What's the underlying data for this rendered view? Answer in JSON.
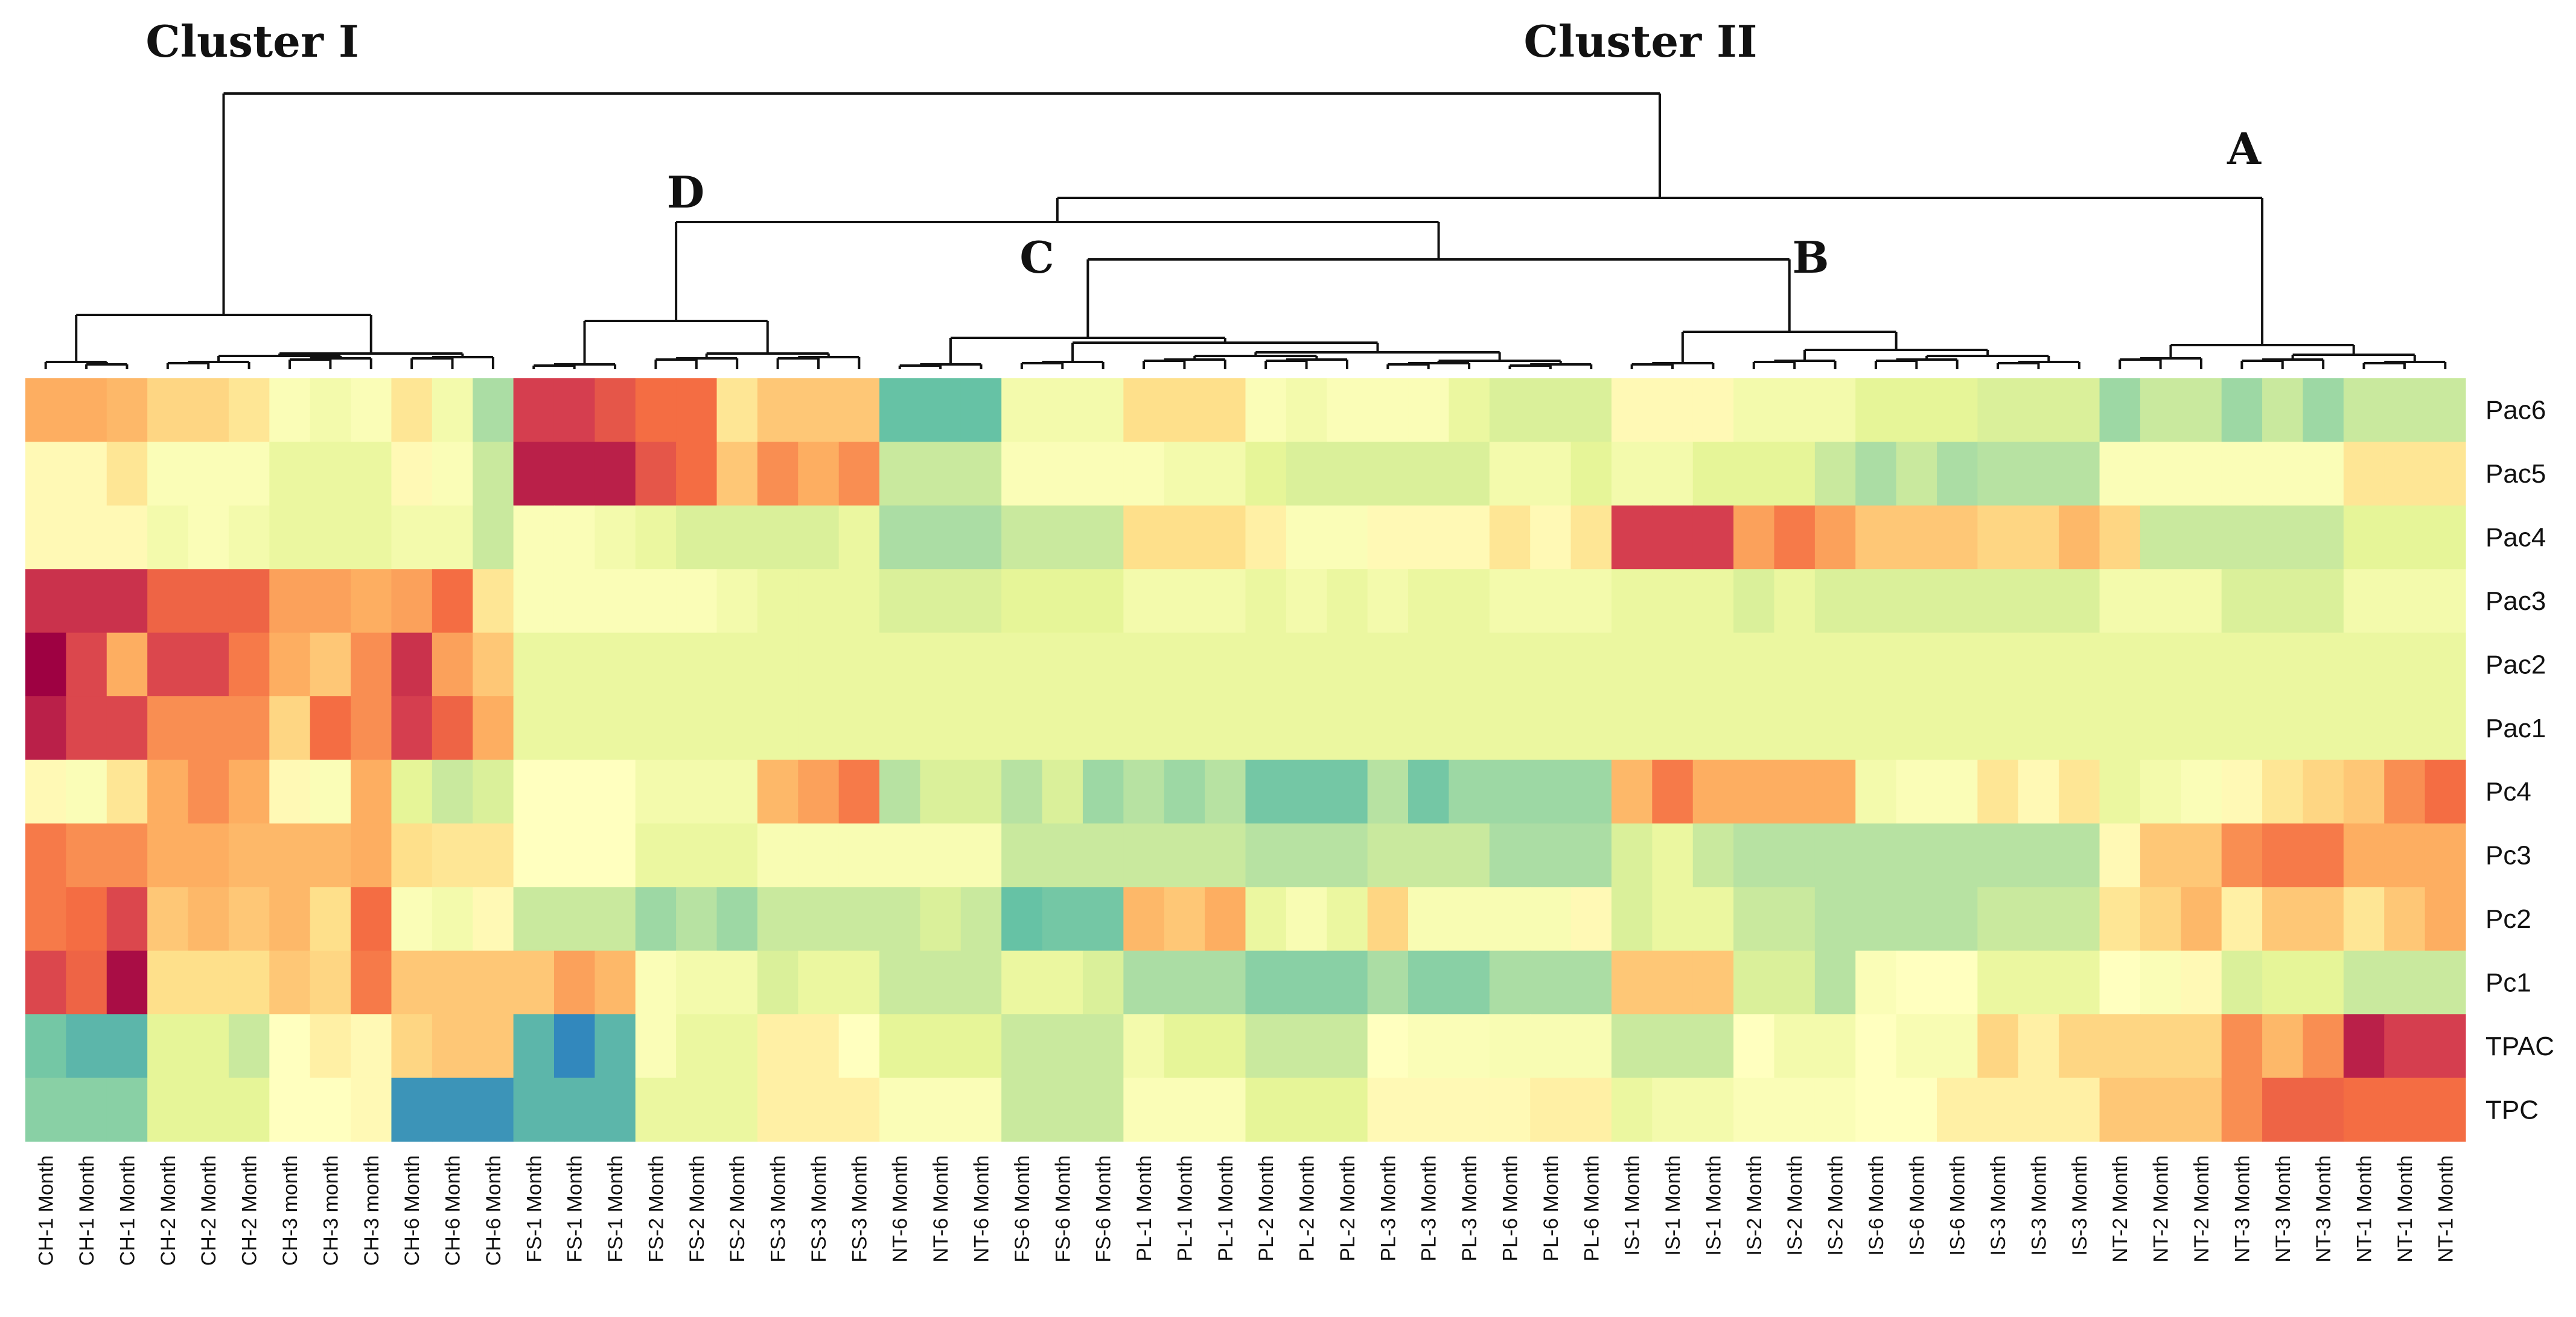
{
  "chart_data": {
    "type": "heatmap",
    "title": "",
    "colormap": [
      "#9e0142",
      "#d53e4f",
      "#f46d43",
      "#fdae61",
      "#fee08b",
      "#ffffbf",
      "#e6f598",
      "#abdda4",
      "#66c2a5",
      "#3288bd"
    ],
    "cluster_labels": {
      "cluster_1": "Cluster I",
      "cluster_2": "Cluster II",
      "a": "A",
      "b": "B",
      "c": "C",
      "d": "D"
    },
    "rows": [
      "Pac6",
      "Pac5",
      "Pac4",
      "Pac3",
      "Pac2",
      "Pac1",
      "Pc4",
      "Pc3",
      "Pc2",
      "Pc1",
      "TPAC",
      "TPC"
    ],
    "columns": [
      "CH-1 Month",
      "CH-1 Month",
      "CH-1 Month",
      "CH-2 Month",
      "CH-2 Month",
      "CH-2 Month",
      "CH-3 month",
      "CH-3 month",
      "CH-3 month",
      "CH-6 Month",
      "CH-6 Month",
      "CH-6 Month",
      "FS-1 Month",
      "FS-1 Month",
      "FS-1 Month",
      "FS-2 Month",
      "FS-2 Month",
      "FS-2 Month",
      "FS-3 Month",
      "FS-3 Month",
      "FS-3 Month",
      "NT-6 Month",
      "NT-6 Month",
      "NT-6 Month",
      "FS-6 Month",
      "FS-6 Month",
      "FS-6 Month",
      "PL-1 Month",
      "PL-1 Month",
      "PL-1 Month",
      "PL-2 Month",
      "PL-2 Month",
      "PL-2 Month",
      "PL-3 Month",
      "PL-3 Month",
      "PL-3 Month",
      "PL-6 Month",
      "PL-6 Month",
      "PL-6 Month",
      "IS-1 Month",
      "IS-1 Month",
      "IS-1 Month",
      "IS-2 Month",
      "IS-2 Month",
      "IS-2 Month",
      "IS-6 Month",
      "IS-6 Month",
      "IS-6 Month",
      "IS-3 Month",
      "IS-3 Month",
      "IS-3 Month",
      "NT-2 Month",
      "NT-2 Month",
      "NT-2 Month",
      "NT-3 Month",
      "NT-3 Month",
      "NT-3 Month",
      "NT-1 Month",
      "NT-1 Month",
      "NT-1 Month"
    ],
    "values": [
      [
        3,
        3,
        3.2,
        3.8,
        3.8,
        4.2,
        5.2,
        5.5,
        5.2,
        4.2,
        5.5,
        7,
        1,
        1,
        1.5,
        2,
        2,
        4.2,
        3.5,
        3.5,
        3.5,
        8,
        8,
        8,
        5.5,
        5.5,
        5.5,
        4,
        4,
        4,
        5.2,
        5.5,
        5.2,
        5.2,
        5.2,
        5.8,
        6.2,
        6.2,
        6.2,
        4.8,
        4.8,
        4.8,
        5.5,
        5.5,
        5.5,
        6,
        6,
        6,
        6.2,
        6.2,
        6.2,
        7.2,
        6.5,
        6.5,
        7.2,
        6.5,
        7.2,
        6.5,
        6.5,
        6.5
      ],
      [
        4.8,
        4.8,
        4.2,
        5.2,
        5.2,
        5.2,
        5.8,
        5.8,
        5.8,
        4.8,
        5.2,
        6.5,
        0.5,
        0.5,
        0.5,
        1.5,
        2,
        3.5,
        2.5,
        3,
        2.5,
        6.5,
        6.5,
        6.5,
        5.2,
        5.2,
        5.2,
        5.2,
        5.5,
        5.5,
        6,
        6.2,
        6.2,
        6.2,
        6.2,
        6.2,
        5.5,
        5.5,
        6,
        5.5,
        5.5,
        6,
        6,
        6,
        6.5,
        7,
        6.5,
        7,
        6.8,
        6.8,
        6.8,
        5.2,
        5.2,
        5.2,
        5.2,
        5.2,
        5.2,
        4.2,
        4.2,
        4.2
      ],
      [
        4.8,
        4.8,
        4.8,
        5.5,
        5.2,
        5.5,
        5.8,
        5.8,
        5.8,
        5.5,
        5.5,
        6.5,
        5.2,
        5.2,
        5.5,
        5.8,
        6.2,
        6.2,
        6.2,
        6.2,
        5.8,
        7,
        7,
        7,
        6.5,
        6.5,
        6.5,
        4,
        4,
        4,
        4.5,
        5.2,
        5.2,
        4.8,
        4.8,
        4.8,
        4.2,
        4.8,
        4.2,
        1,
        1,
        1,
        2.8,
        2.2,
        2.8,
        3.5,
        3.5,
        3.5,
        3.8,
        3.8,
        3.2,
        3.8,
        6.5,
        6.5,
        6.5,
        6.5,
        6.5,
        6,
        6,
        6
      ],
      [
        0.8,
        0.8,
        0.8,
        1.8,
        1.8,
        1.8,
        2.8,
        2.8,
        3,
        2.8,
        2,
        4.2,
        5.2,
        5.2,
        5.2,
        5.2,
        5.2,
        5.5,
        5.8,
        5.8,
        5.8,
        6.2,
        6.2,
        6.2,
        6,
        6,
        6,
        5.5,
        5.5,
        5.5,
        5.8,
        5.5,
        5.8,
        5.5,
        5.8,
        5.8,
        5.5,
        5.5,
        5.5,
        5.8,
        5.8,
        5.8,
        6.2,
        5.8,
        6.2,
        6.2,
        6.2,
        6.2,
        6.2,
        6.2,
        6.2,
        5.5,
        5.5,
        5.5,
        6.2,
        6.2,
        6.2,
        5.5,
        5.5,
        5.5
      ],
      [
        0,
        1.2,
        3,
        1.2,
        1.2,
        2.2,
        3,
        3.5,
        2.5,
        0.8,
        2.8,
        3.5,
        5.8,
        5.8,
        5.8,
        5.8,
        5.8,
        5.8,
        5.8,
        5.8,
        5.8,
        5.8,
        5.8,
        5.8,
        5.8,
        5.8,
        5.8,
        5.8,
        5.8,
        5.8,
        5.8,
        5.8,
        5.8,
        5.8,
        5.8,
        5.8,
        5.8,
        5.8,
        5.8,
        5.8,
        5.8,
        5.8,
        5.8,
        5.8,
        5.8,
        5.8,
        5.8,
        5.8,
        5.8,
        5.8,
        5.8,
        5.8,
        5.8,
        5.8,
        5.8,
        5.8,
        5.8,
        5.8,
        5.8,
        5.8
      ],
      [
        0.5,
        1.2,
        1.2,
        2.5,
        2.5,
        2.5,
        3.8,
        2,
        2.5,
        1,
        1.8,
        3,
        5.8,
        5.8,
        5.8,
        5.8,
        5.8,
        5.8,
        5.8,
        5.8,
        5.8,
        5.8,
        5.8,
        5.8,
        5.8,
        5.8,
        5.8,
        5.8,
        5.8,
        5.8,
        5.8,
        5.8,
        5.8,
        5.8,
        5.8,
        5.8,
        5.8,
        5.8,
        5.8,
        5.8,
        5.8,
        5.8,
        5.8,
        5.8,
        5.8,
        5.8,
        5.8,
        5.8,
        5.8,
        5.8,
        5.8,
        5.8,
        5.8,
        5.8,
        5.8,
        5.8,
        5.8,
        5.8,
        5.8,
        5.8
      ],
      [
        4.8,
        5.2,
        4.2,
        3,
        2.5,
        3,
        4.8,
        5.2,
        3,
        6,
        6.5,
        6.2,
        5,
        5,
        5,
        5.5,
        5.5,
        5.5,
        3.2,
        2.8,
        2.2,
        6.8,
        6.2,
        6.2,
        6.8,
        6.2,
        7.2,
        6.8,
        7.2,
        6.8,
        7.8,
        7.8,
        7.8,
        6.8,
        7.8,
        7.2,
        7.2,
        7.2,
        7.2,
        3.2,
        2.2,
        3,
        3,
        3,
        3,
        5.5,
        5.2,
        5.2,
        4.2,
        4.8,
        4.2,
        5.8,
        5.5,
        5.2,
        4.8,
        4.2,
        3.8,
        3.5,
        2.5,
        2
      ],
      [
        2.2,
        2.5,
        2.5,
        3,
        3,
        3.2,
        3.2,
        3.2,
        3,
        4,
        4.2,
        4.2,
        5,
        5,
        5,
        5.8,
        5.8,
        5.8,
        5.3,
        5.3,
        5.3,
        5.3,
        5.3,
        5.3,
        6.5,
        6.5,
        6.5,
        6.5,
        6.5,
        6.5,
        6.8,
        6.8,
        6.8,
        6.5,
        6.5,
        6.5,
        7,
        7,
        7,
        6.2,
        5.8,
        6.5,
        6.8,
        6.8,
        6.8,
        6.8,
        6.8,
        6.8,
        6.8,
        6.8,
        6.8,
        4.8,
        3.5,
        3.5,
        2.5,
        2.2,
        2.2,
        3,
        3,
        3
      ],
      [
        2.2,
        2,
        1.2,
        3.5,
        3.2,
        3.5,
        3.2,
        4,
        2,
        5.2,
        5.5,
        4.8,
        6.5,
        6.5,
        6.5,
        7.2,
        6.8,
        7.2,
        6.5,
        6.5,
        6.5,
        6.5,
        6.2,
        6.5,
        8,
        7.8,
        7.8,
        3.2,
        3.5,
        3,
        5.8,
        5.3,
        5.8,
        3.8,
        5.3,
        5.3,
        5.3,
        5.3,
        4.8,
        6.2,
        5.8,
        5.8,
        6.5,
        6.5,
        6.8,
        6.8,
        6.8,
        6.8,
        6.5,
        6.5,
        6.5,
        4.2,
        3.8,
        3.2,
        4.5,
        3.5,
        3.5,
        4.2,
        3.5,
        3
      ],
      [
        1.2,
        1.8,
        0.2,
        4,
        4,
        4,
        3.5,
        3.8,
        2.2,
        3.5,
        3.5,
        3.5,
        3.5,
        2.8,
        3.2,
        5.2,
        5.5,
        5.5,
        6.2,
        5.8,
        5.8,
        6.5,
        6.5,
        6.5,
        5.8,
        5.8,
        6.2,
        7,
        7,
        7,
        7.5,
        7.5,
        7.5,
        7,
        7.5,
        7.5,
        7,
        7,
        7,
        3.5,
        3.5,
        3.5,
        6.2,
        6.2,
        6.8,
        5.2,
        5,
        5,
        5.8,
        5.8,
        5.8,
        5,
        5.2,
        4.8,
        6.2,
        6,
        6,
        6.5,
        6.5,
        6.5
      ],
      [
        7.8,
        8.2,
        8.2,
        6,
        6,
        6.5,
        5,
        4.5,
        4.8,
        3.8,
        3.5,
        3.5,
        8.2,
        9,
        8.2,
        5.2,
        5.8,
        5.8,
        4.5,
        4.5,
        5,
        6,
        6,
        6,
        6.5,
        6.5,
        6.5,
        5.5,
        6,
        6,
        6.5,
        6.5,
        6.5,
        5,
        5.2,
        5.2,
        5.3,
        5.3,
        5.3,
        6.5,
        6.5,
        6.5,
        5,
        5.5,
        5.5,
        5,
        5.3,
        5.3,
        3.8,
        4.5,
        3.8,
        3.8,
        3.8,
        3.8,
        2.5,
        3.2,
        2.5,
        0.5,
        1,
        1
      ],
      [
        7.5,
        7.5,
        7.5,
        6,
        6,
        6,
        5,
        5,
        4.8,
        8.8,
        8.8,
        8.8,
        8.2,
        8.2,
        8.2,
        5.8,
        5.8,
        5.8,
        4.5,
        4.5,
        4.5,
        5.2,
        5.2,
        5.2,
        6.5,
        6.5,
        6.5,
        5.2,
        5.2,
        5.2,
        6,
        6,
        6,
        4.8,
        4.8,
        4.8,
        4.8,
        4.5,
        4.5,
        5.8,
        5.5,
        5.5,
        5.2,
        5.2,
        5.2,
        5,
        5,
        4.5,
        4.5,
        4.5,
        4.5,
        3.5,
        3.5,
        3.5,
        2.5,
        1.8,
        1.8,
        2,
        2,
        2
      ]
    ]
  }
}
